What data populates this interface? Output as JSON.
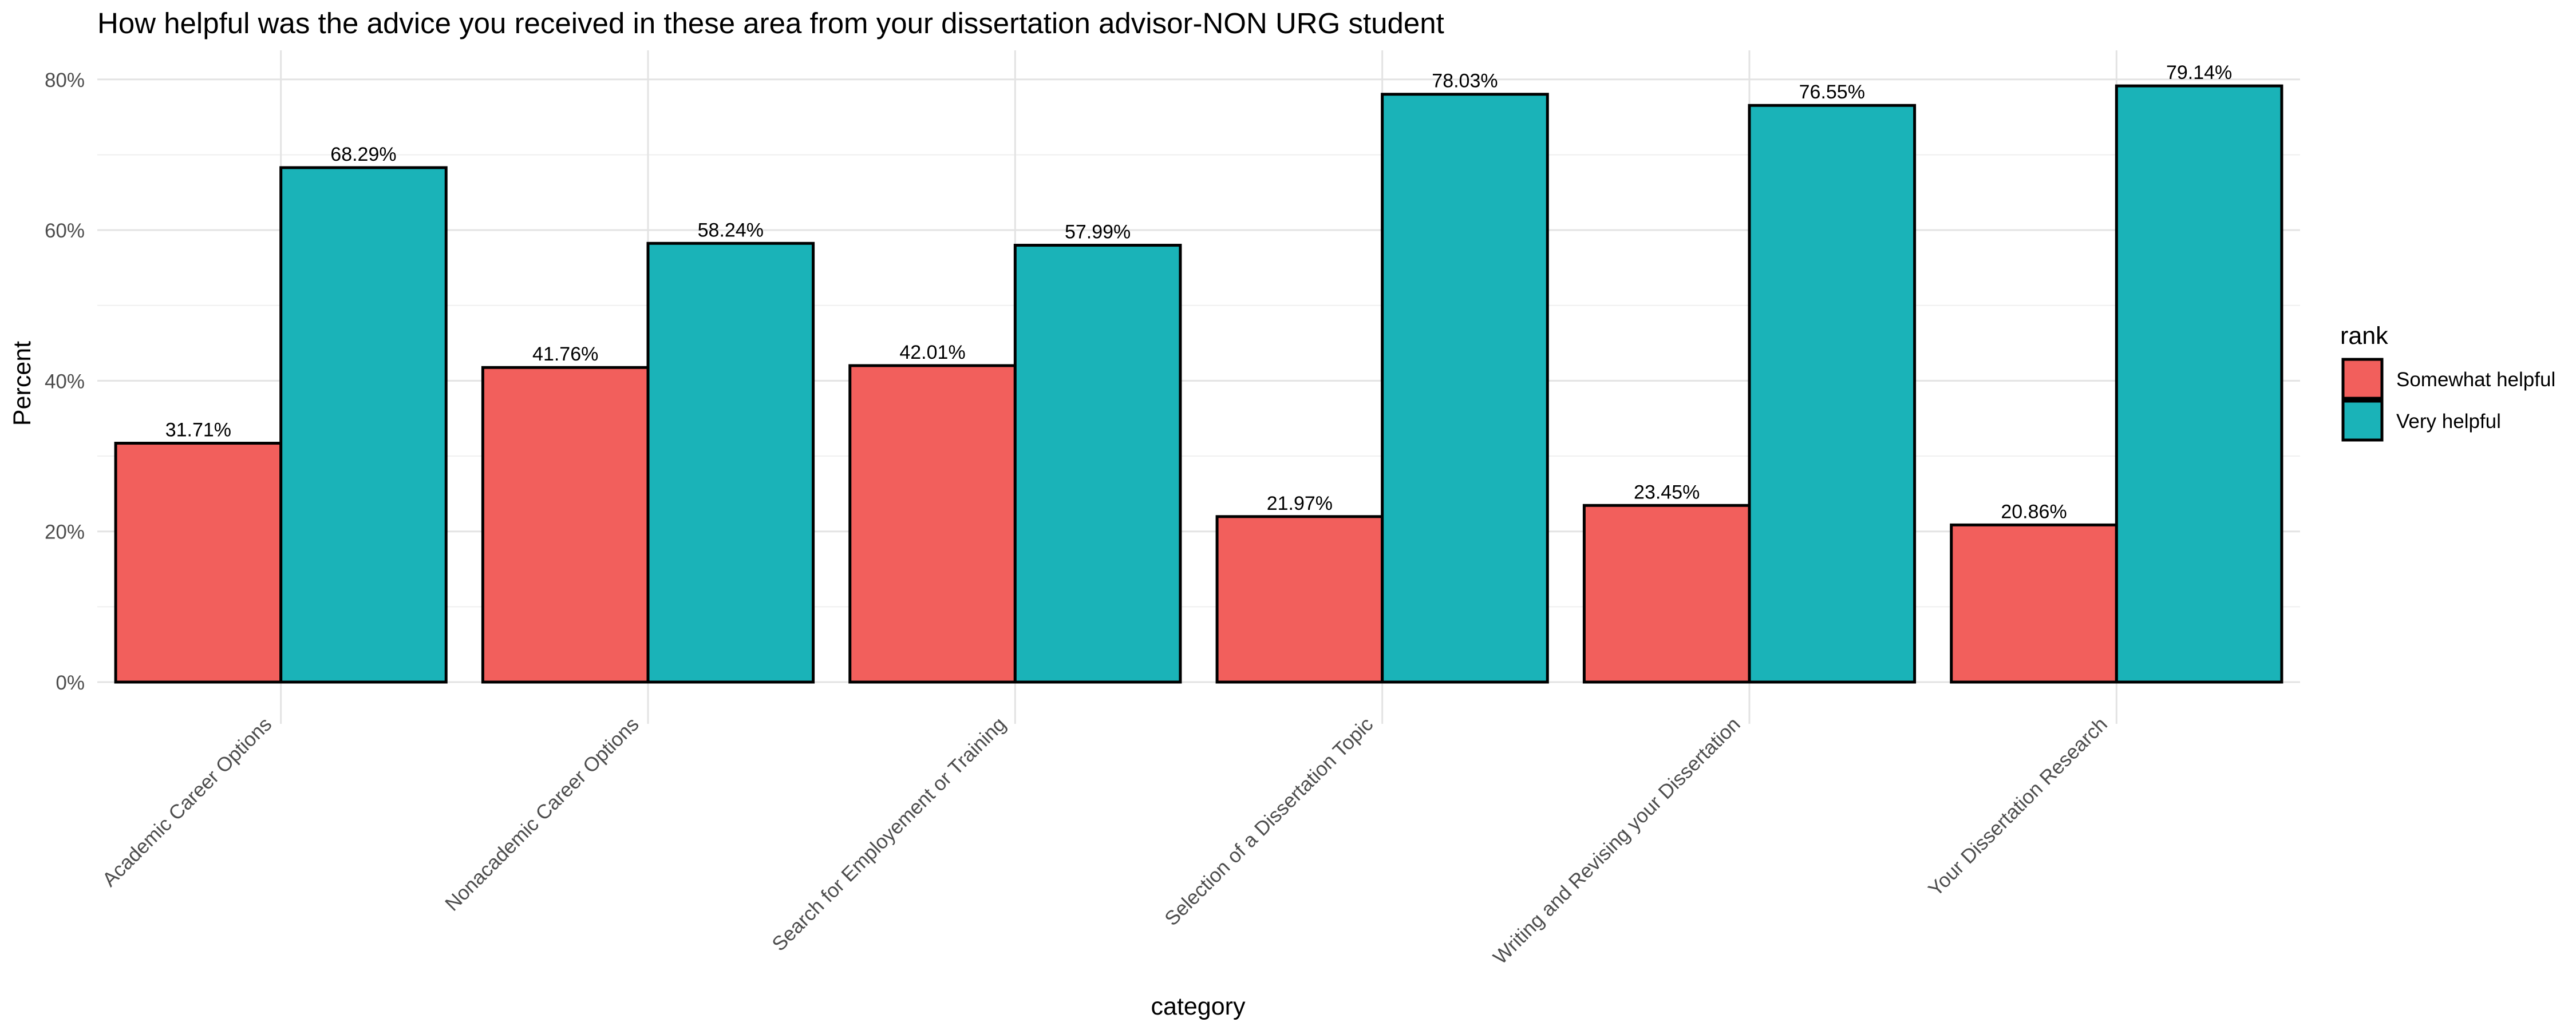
{
  "chart_data": {
    "type": "bar",
    "title": "How helpful was the advice you received in these area from your dissertation advisor-NON URG student",
    "xlabel": "category",
    "ylabel": "Percent",
    "ylim": [
      0,
      82
    ],
    "yticks": [
      0,
      20,
      40,
      60,
      80
    ],
    "ytick_labels": [
      "0%",
      "20%",
      "40%",
      "60%",
      "80%"
    ],
    "grid": true,
    "legend": {
      "title": "rank",
      "placement": "right"
    },
    "categories": [
      "Academic Career Options",
      "Nonacademic Career Options",
      "Search for Employement or Training",
      "Selection of a Dissertation Topic",
      "Writing and Revising your Dissertation",
      "Your Dissertation Research"
    ],
    "series": [
      {
        "name": "Somewhat helpful",
        "color": "#F25F5C",
        "values": [
          31.71,
          41.76,
          42.01,
          21.97,
          23.45,
          20.86
        ],
        "labels": [
          "31.71%",
          "41.76%",
          "42.01%",
          "21.97%",
          "23.45%",
          "20.86%"
        ]
      },
      {
        "name": "Very helpful",
        "color": "#1AB3B8",
        "values": [
          68.29,
          58.24,
          57.99,
          78.03,
          76.55,
          79.14
        ],
        "labels": [
          "68.29%",
          "58.24%",
          "57.99%",
          "78.03%",
          "76.55%",
          "79.14%"
        ]
      }
    ]
  }
}
